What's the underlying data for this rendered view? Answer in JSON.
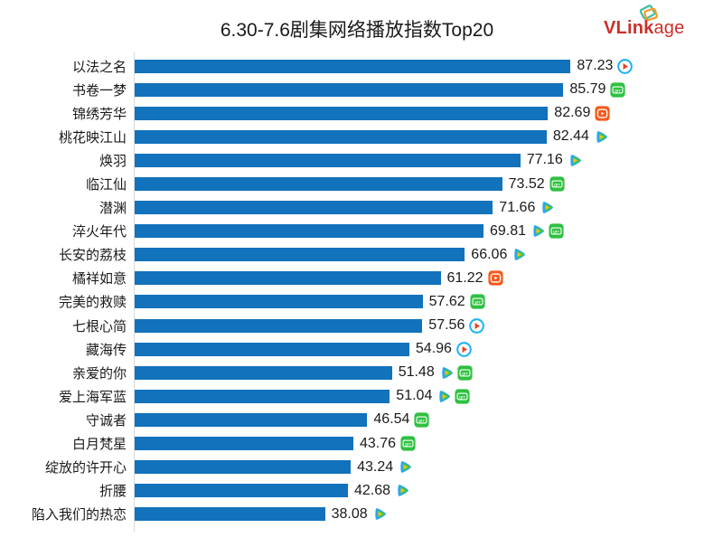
{
  "title": "6.30-7.6剧集网络播放指数Top20",
  "logo": {
    "text_bold": "VLink",
    "text_light": "age",
    "color": "#C9302C"
  },
  "chart_data": {
    "type": "bar",
    "orientation": "horizontal",
    "title": "6.30-7.6剧集网络播放指数Top20",
    "xlabel": "",
    "ylabel": "",
    "xlim": [
      0,
      100
    ],
    "grid": false,
    "legend": "none",
    "bar_color": "#1272BC",
    "value_label_decimals": 2,
    "categories": [
      "以法之名",
      "书卷一梦",
      "锦绣芳华",
      "桃花映江山",
      "焕羽",
      "临江仙",
      "潜渊",
      "淬火年代",
      "长安的荔枝",
      "橘祥如意",
      "完美的救赎",
      "七根心简",
      "藏海传",
      "亲爱的你",
      "爱上海军蓝",
      "守诚者",
      "白月梵星",
      "绽放的许开心",
      "折腰",
      "陷入我们的热恋"
    ],
    "values": [
      87.23,
      85.79,
      82.69,
      82.44,
      77.16,
      73.52,
      71.66,
      69.81,
      66.06,
      61.22,
      57.62,
      57.56,
      54.96,
      51.48,
      51.04,
      46.54,
      43.76,
      43.24,
      42.68,
      38.08
    ],
    "platforms": [
      [
        "youku"
      ],
      [
        "iqiyi"
      ],
      [
        "mgtv"
      ],
      [
        "tencent"
      ],
      [
        "tencent"
      ],
      [
        "iqiyi"
      ],
      [
        "tencent"
      ],
      [
        "tencent",
        "iqiyi"
      ],
      [
        "tencent"
      ],
      [
        "mgtv"
      ],
      [
        "iqiyi"
      ],
      [
        "youku"
      ],
      [
        "youku"
      ],
      [
        "tencent",
        "iqiyi"
      ],
      [
        "tencent",
        "iqiyi"
      ],
      [
        "iqiyi"
      ],
      [
        "iqiyi"
      ],
      [
        "tencent"
      ],
      [
        "tencent"
      ],
      [
        "tencent"
      ]
    ],
    "platform_colors": {
      "youku": "#1CB2F5",
      "youku_arrow": "#E8412C",
      "iqiyi": "#2FC041",
      "mgtv": "#F5591C",
      "tencent_blue": "#2BA6F0",
      "tencent_green": "#43CB42",
      "tencent_yellow": "#FFC20D"
    },
    "iqiyi_badge_text": "QIY"
  }
}
